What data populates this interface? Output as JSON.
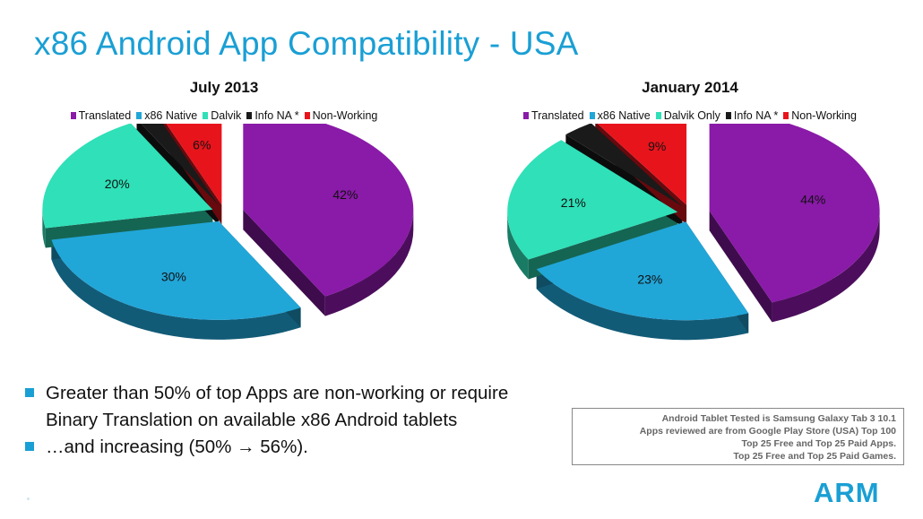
{
  "page": {
    "title": "x86 Android App Compatibility - USA",
    "bullets": [
      "Greater than 50% of top Apps are non-working or require",
      "Binary Translation on available x86 Android tablets",
      "…and increasing (50% → 56%)."
    ],
    "notes": [
      "Android  Tablet Tested is Samsung Galaxy Tab 3 10.1",
      "Apps reviewed are from Google Play Store (USA) Top 100",
      "Top 25 Free and Top 25 Paid Apps.",
      "Top 25 Free and Top 25 Paid Games."
    ],
    "logo": "ARM",
    "colors": {
      "accent": "#1a9fd4",
      "translated": "#8a1aa8",
      "x86_native": "#21a6d8",
      "dalvik": "#2fe0b8",
      "info_na": "#1a1a1a",
      "non_working": "#e8141c"
    }
  },
  "chart_data": [
    {
      "type": "pie",
      "style": "3d-exploded",
      "title": "July 2013",
      "legend_position": "top",
      "categories": [
        "Translated",
        "x86 Native",
        "Dalvik",
        "Info NA *",
        "Non-Working"
      ],
      "values": [
        42,
        30,
        20,
        2,
        6
      ],
      "labels": [
        "42%",
        "30%",
        "20%",
        "2%",
        "6%"
      ]
    },
    {
      "type": "pie",
      "style": "3d-exploded",
      "title": "January 2014",
      "legend_position": "top",
      "categories": [
        "Translated",
        "x86 Native",
        "Dalvik Only",
        "Info NA *",
        "Non-Working"
      ],
      "values": [
        44,
        23,
        21,
        3,
        9
      ],
      "labels": [
        "44%",
        "23%",
        "21%",
        "3%",
        "9%"
      ]
    }
  ]
}
